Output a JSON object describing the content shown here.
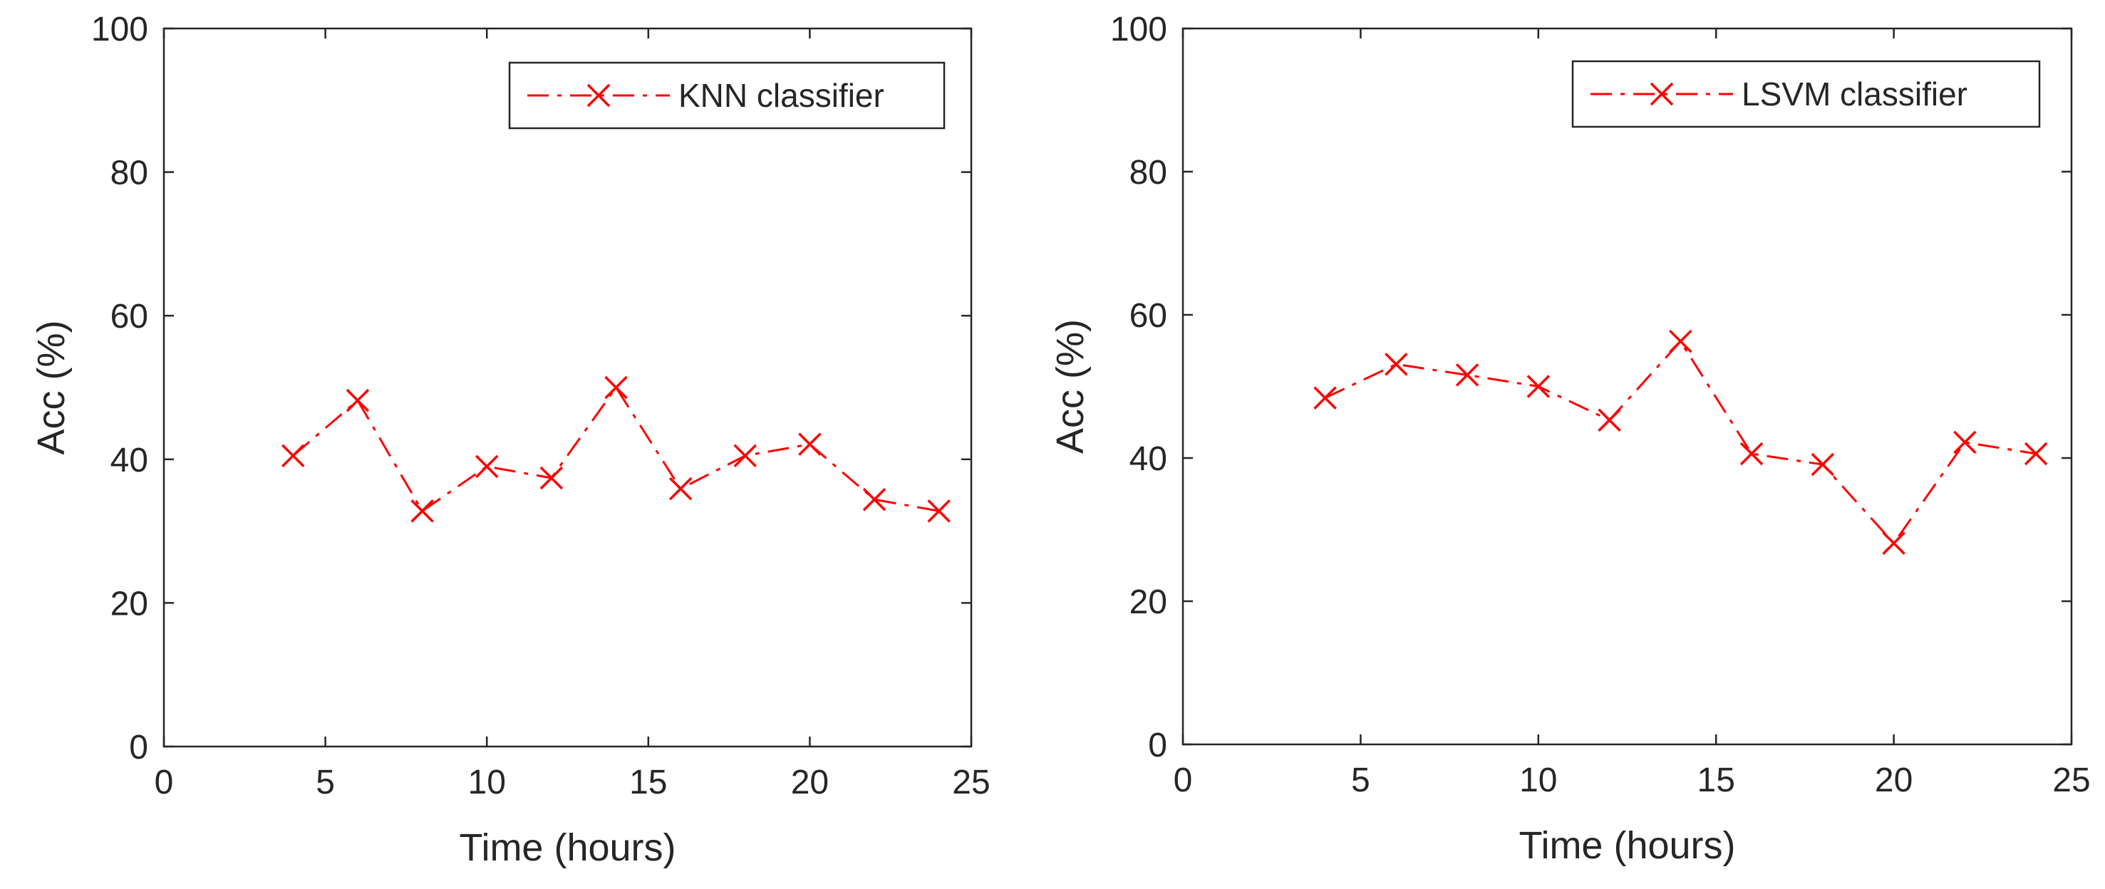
{
  "colors": {
    "series": "#ff0000",
    "axis": "#262626",
    "background": "#ffffff"
  },
  "chart_data": [
    {
      "type": "line",
      "title": "",
      "xlabel": "Time (hours)",
      "ylabel": "Acc (%)",
      "xlim": [
        0,
        25
      ],
      "ylim": [
        0,
        100
      ],
      "xticks": [
        0,
        5,
        10,
        15,
        20,
        25
      ],
      "yticks": [
        0,
        20,
        40,
        60,
        80,
        100
      ],
      "xtick_labels": [
        "0",
        "5",
        "10",
        "15",
        "20",
        "25"
      ],
      "ytick_labels": [
        "0",
        "20",
        "40",
        "60",
        "80",
        "100"
      ],
      "grid": false,
      "legend": {
        "position": "top-right",
        "entries": [
          "KNN classifier"
        ]
      },
      "series": [
        {
          "name": "KNN classifier",
          "line_style": "dash-dot",
          "marker": "x",
          "x": [
            4,
            6,
            8,
            10,
            12,
            14,
            16,
            18,
            20,
            22,
            24
          ],
          "y": [
            40.5,
            48.2,
            32.8,
            39.0,
            37.4,
            50.0,
            35.9,
            40.5,
            42.1,
            34.4,
            32.8
          ]
        }
      ]
    },
    {
      "type": "line",
      "title": "",
      "xlabel": "Time (hours)",
      "ylabel": "Acc (%)",
      "xlim": [
        0,
        25
      ],
      "ylim": [
        0,
        100
      ],
      "xticks": [
        0,
        5,
        10,
        15,
        20,
        25
      ],
      "yticks": [
        0,
        20,
        40,
        60,
        80,
        100
      ],
      "xtick_labels": [
        "0",
        "5",
        "10",
        "15",
        "20",
        "25"
      ],
      "ytick_labels": [
        "0",
        "20",
        "40",
        "60",
        "80",
        "100"
      ],
      "grid": false,
      "legend": {
        "position": "top-right",
        "entries": [
          "LSVM classifier"
        ]
      },
      "series": [
        {
          "name": "LSVM classifier",
          "line_style": "dash-dot",
          "marker": "x",
          "x": [
            4,
            6,
            8,
            10,
            12,
            14,
            16,
            18,
            20,
            22,
            24
          ],
          "y": [
            48.4,
            53.1,
            51.6,
            50.0,
            45.3,
            56.3,
            40.6,
            39.1,
            28.1,
            42.2,
            40.6
          ]
        }
      ]
    }
  ]
}
